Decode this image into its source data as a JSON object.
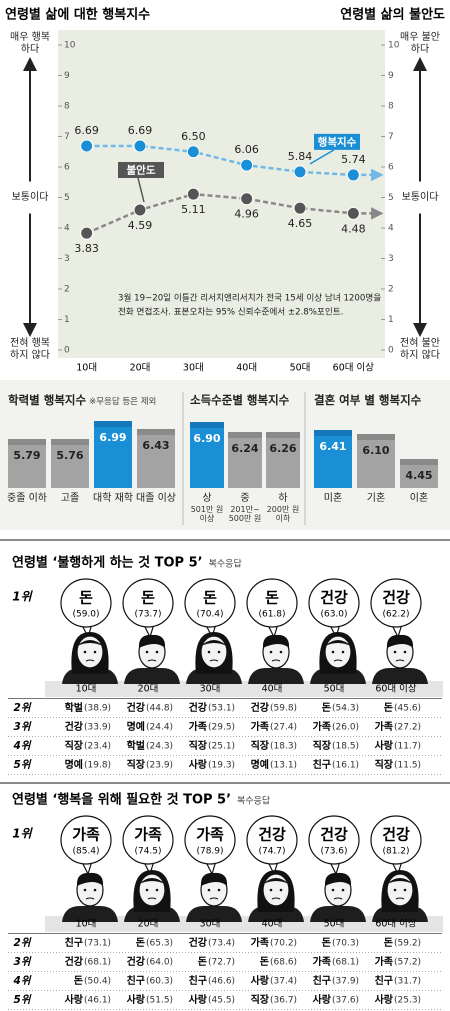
{
  "chart_data": [
    {
      "type": "line",
      "title": "연령별 삶에 대한 행복지수",
      "title_right": "연령별 삶의 불안도",
      "categories": [
        "10대",
        "20대",
        "30대",
        "40대",
        "50대",
        "60대 이상"
      ],
      "series": [
        {
          "name": "행복지수",
          "color": "#1a8fd6",
          "values": [
            6.69,
            6.69,
            6.5,
            6.06,
            5.84,
            5.74
          ],
          "value_labels": [
            "6.69",
            "6.69",
            "6.50",
            "6.06",
            "5.84",
            "5.74"
          ]
        },
        {
          "name": "불안도",
          "color": "#555555",
          "axis": "y2",
          "values": [
            3.83,
            4.59,
            5.11,
            4.96,
            4.65,
            4.48
          ],
          "value_labels": [
            "3.83",
            "4.59",
            "5.11",
            "4.96",
            "4.65",
            "4.48"
          ]
        }
      ],
      "ylim": [
        0,
        10
      ],
      "yticks": [
        0,
        1,
        2,
        3,
        4,
        5,
        6,
        7,
        8,
        9,
        10
      ],
      "y2lim": [
        0,
        10
      ],
      "y2ticks": [
        0,
        1,
        2,
        3,
        4,
        5,
        6,
        7,
        8,
        9,
        10
      ],
      "left_axis_labels": [
        "매우 행복하다",
        "보통이다",
        "전혀 행복하지 않다"
      ],
      "right_axis_labels": [
        "매우 불안하다",
        "보통이다",
        "전혀 불안하지 않다"
      ],
      "note": [
        "3월 19~20일 이틀간 리서치앤리서치가 전국 15세 이상 남녀 1200명을",
        "전화 면접조사. 표본오차는 95% 신뢰수준에서 ±2.8%포인트."
      ]
    },
    {
      "type": "bar",
      "title": "학력별 행복지수",
      "subtitle": "※무응답 등은 제외",
      "categories": [
        "중졸 이하",
        "고졸",
        "대학 재학",
        "대졸 이상"
      ],
      "values": [
        5.79,
        5.76,
        6.99,
        6.43
      ],
      "value_labels": [
        "5.79",
        "5.76",
        "6.99",
        "6.43"
      ],
      "colors": [
        "#a3a3a3",
        "#a3a3a3",
        "#1a8fd6",
        "#a3a3a3"
      ],
      "ylim": [
        2.5,
        7.2
      ]
    },
    {
      "type": "bar",
      "title": "소득수준별 행복지수",
      "categories": [
        "상",
        "중",
        "하"
      ],
      "category_notes": [
        "501만 원 이상",
        "201만~ 500만 원",
        "200만 원 이하"
      ],
      "values": [
        6.9,
        6.24,
        6.26
      ],
      "value_labels": [
        "6.90",
        "6.24",
        "6.26"
      ],
      "colors": [
        "#1a8fd6",
        "#a3a3a3",
        "#a3a3a3"
      ],
      "ylim": [
        2.5,
        7.2
      ]
    },
    {
      "type": "bar",
      "title": "결혼 여부 별 행복지수",
      "categories": [
        "미혼",
        "기혼",
        "이혼"
      ],
      "values": [
        6.41,
        6.1,
        4.45
      ],
      "value_labels": [
        "6.41",
        "6.10",
        "4.45"
      ],
      "colors": [
        "#1a8fd6",
        "#a3a3a3",
        "#a3a3a3"
      ],
      "ylim": [
        2.5,
        7.2
      ]
    }
  ],
  "rankings": [
    {
      "title": "연령별 ‘불행하게 하는 것 TOP 5’",
      "subtitle": "복수응답",
      "ages": [
        "10대",
        "20대",
        "30대",
        "40대",
        "50대",
        "60대 이상"
      ],
      "ranks": [
        "1위",
        "2위",
        "3위",
        "4위",
        "5위"
      ],
      "rows": [
        [
          {
            "item": "돈",
            "share": "(59.0)"
          },
          {
            "item": "돈",
            "share": "(73.7)"
          },
          {
            "item": "돈",
            "share": "(70.4)"
          },
          {
            "item": "돈",
            "share": "(61.8)"
          },
          {
            "item": "건강",
            "share": "(63.0)"
          },
          {
            "item": "건강",
            "share": "(62.2)"
          }
        ],
        [
          {
            "item": "학벌",
            "share": "(38.9)"
          },
          {
            "item": "건강",
            "share": "(44.8)"
          },
          {
            "item": "건강",
            "share": "(53.1)"
          },
          {
            "item": "건강",
            "share": "(59.8)"
          },
          {
            "item": "돈",
            "share": "(54.3)"
          },
          {
            "item": "돈",
            "share": "(45.6)"
          }
        ],
        [
          {
            "item": "건강",
            "share": "(33.9)"
          },
          {
            "item": "명예",
            "share": "(24.4)"
          },
          {
            "item": "가족",
            "share": "(29.5)"
          },
          {
            "item": "가족",
            "share": "(27.4)"
          },
          {
            "item": "가족",
            "share": "(26.0)"
          },
          {
            "item": "가족",
            "share": "(27.2)"
          }
        ],
        [
          {
            "item": "직장",
            "share": "(23.4)"
          },
          {
            "item": "학벌",
            "share": "(24.3)"
          },
          {
            "item": "직장",
            "share": "(25.1)"
          },
          {
            "item": "직장",
            "share": "(18.3)"
          },
          {
            "item": "직장",
            "share": "(18.5)"
          },
          {
            "item": "사랑",
            "share": "(11.7)"
          }
        ],
        [
          {
            "item": "명예",
            "share": "(19.8)"
          },
          {
            "item": "직장",
            "share": "(23.9)"
          },
          {
            "item": "사랑",
            "share": "(19.3)"
          },
          {
            "item": "명예",
            "share": "(13.1)"
          },
          {
            "item": "친구",
            "share": "(16.1)"
          },
          {
            "item": "직장",
            "share": "(11.5)"
          }
        ]
      ]
    },
    {
      "title": "연령별 ‘행복을 위해 필요한 것 TOP 5’",
      "subtitle": "복수응답",
      "ages": [
        "10대",
        "20대",
        "30대",
        "40대",
        "50대",
        "60대 이상"
      ],
      "ranks": [
        "1위",
        "2위",
        "3위",
        "4위",
        "5위"
      ],
      "rows": [
        [
          {
            "item": "가족",
            "share": "(85.4)"
          },
          {
            "item": "가족",
            "share": "(74.5)"
          },
          {
            "item": "가족",
            "share": "(78.9)"
          },
          {
            "item": "건강",
            "share": "(74.7)"
          },
          {
            "item": "건강",
            "share": "(73.6)"
          },
          {
            "item": "건강",
            "share": "(81.2)"
          }
        ],
        [
          {
            "item": "친구",
            "share": "(73.1)"
          },
          {
            "item": "돈",
            "share": "(65.3)"
          },
          {
            "item": "건강",
            "share": "(73.4)"
          },
          {
            "item": "가족",
            "share": "(70.2)"
          },
          {
            "item": "돈",
            "share": "(70.3)"
          },
          {
            "item": "돈",
            "share": "(59.2)"
          }
        ],
        [
          {
            "item": "건강",
            "share": "(68.1)"
          },
          {
            "item": "건강",
            "share": "(64.0)"
          },
          {
            "item": "돈",
            "share": "(72.7)"
          },
          {
            "item": "돈",
            "share": "(68.6)"
          },
          {
            "item": "가족",
            "share": "(68.1)"
          },
          {
            "item": "가족",
            "share": "(57.2)"
          }
        ],
        [
          {
            "item": "돈",
            "share": "(50.4)"
          },
          {
            "item": "친구",
            "share": "(60.3)"
          },
          {
            "item": "친구",
            "share": "(46.6)"
          },
          {
            "item": "사랑",
            "share": "(37.4)"
          },
          {
            "item": "친구",
            "share": "(37.9)"
          },
          {
            "item": "친구",
            "share": "(31.7)"
          }
        ],
        [
          {
            "item": "사랑",
            "share": "(46.1)"
          },
          {
            "item": "사랑",
            "share": "(51.5)"
          },
          {
            "item": "사랑",
            "share": "(45.5)"
          },
          {
            "item": "직장",
            "share": "(36.7)"
          },
          {
            "item": "사랑",
            "share": "(37.6)"
          },
          {
            "item": "사랑",
            "share": "(25.3)"
          }
        ]
      ]
    }
  ]
}
